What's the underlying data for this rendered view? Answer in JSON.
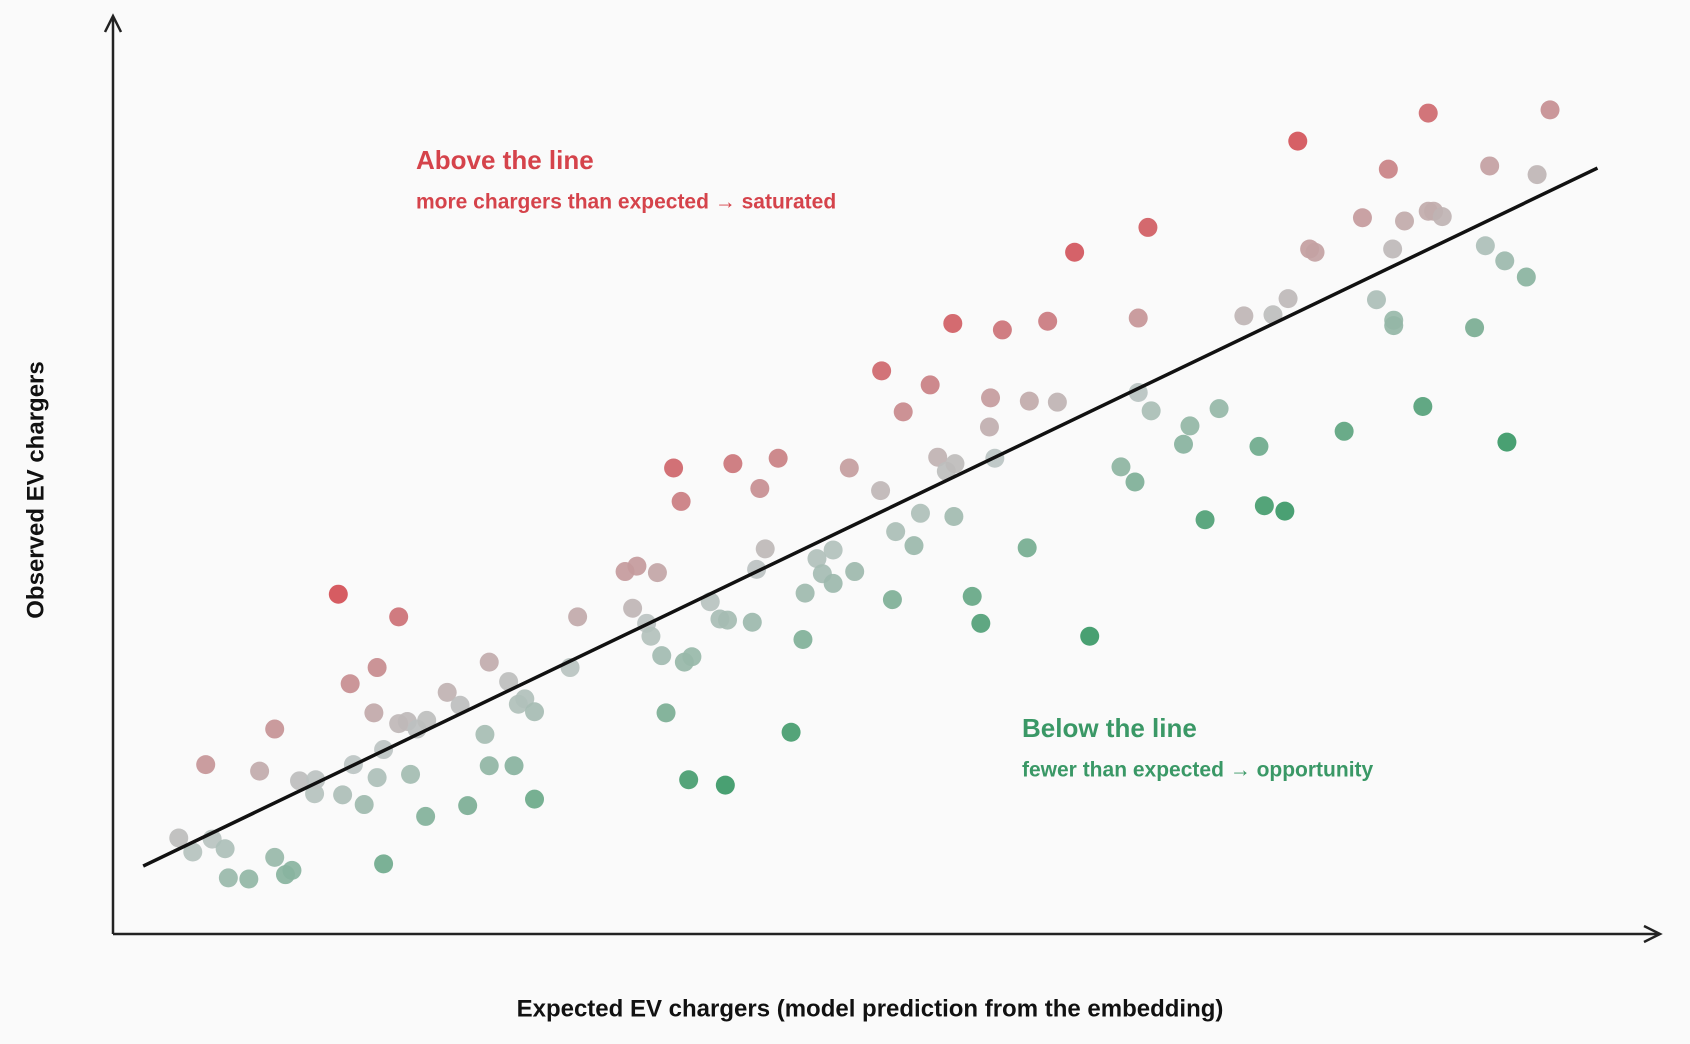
{
  "chart_data": {
    "type": "scatter",
    "x_label": "Expected EV chargers  (model prediction from the embedding)",
    "y_label": "Observed EV chargers",
    "annotations": [
      {
        "title": "Above the line",
        "text": "more chargers than expected → saturated",
        "side": "above"
      },
      {
        "title": "Below the line",
        "text": "fewer than expected → opportunity",
        "side": "below"
      }
    ],
    "colors": {
      "above": "#d5434b",
      "neutral": "#bcc4c3",
      "below": "#3a9866",
      "line": "#111111"
    },
    "xlim": [
      0,
      1435
    ],
    "ylim": [
      0,
      851
    ],
    "x": [
      61,
      74,
      92,
      104,
      107,
      126,
      150,
      160,
      166,
      86,
      136,
      150,
      173,
      187,
      188,
      209,
      213,
      220,
      223,
      233,
      242,
      245,
      245,
      251,
      251,
      265,
      265,
      273,
      276,
      282,
      291,
      290,
      310,
      322,
      329,
      345,
      349,
      349,
      367,
      372,
      376,
      382,
      391,
      391,
      424,
      431,
      475,
      486,
      505,
      482,
      495,
      499,
      509,
      513,
      530,
      537,
      520,
      527,
      534,
      554,
      563,
      570,
      568,
      575,
      593,
      597,
      600,
      605,
      617,
      629,
      640,
      642,
      653,
      658,
      668,
      668,
      683,
      688,
      712,
      713,
      723,
      726,
      733,
      743,
      749,
      758,
      765,
      773,
      779,
      781,
      780,
      797,
      805,
      813,
      814,
      818,
      825,
      848,
      850,
      867,
      876,
      892,
      906,
      935,
      948,
      951,
      951,
      960,
      963,
      993,
      999,
      1013,
      1026,
      1049,
      1063,
      1068,
      1076,
      1087,
      1090,
      1099,
      1110,
      1115,
      1142,
      1159,
      1172,
      1183,
      1187,
      1188,
      1188,
      1198,
      1215,
      1220,
      1220,
      1225,
      1233,
      1263,
      1273,
      1277,
      1291,
      1293,
      1311,
      1321,
      1333
    ],
    "y": [
      89,
      76,
      88,
      79,
      52,
      51,
      71,
      55,
      59,
      157,
      151,
      190,
      142,
      130,
      143,
      315,
      129,
      232,
      157,
      120,
      205,
      247,
      145,
      171,
      65,
      294,
      195,
      197,
      148,
      190,
      198,
      109,
      224,
      212,
      119,
      185,
      252,
      156,
      234,
      156,
      213,
      218,
      206,
      125,
      247,
      294,
      336,
      341,
      335,
      302,
      288,
      276,
      258,
      205,
      252,
      257,
      432,
      401,
      143,
      308,
      292,
      291,
      138,
      436,
      289,
      338,
      413,
      357,
      441,
      187,
      273,
      316,
      348,
      334,
      356,
      325,
      432,
      336,
      411,
      522,
      310,
      373,
      484,
      360,
      390,
      509,
      442,
      429,
      566,
      436,
      387,
      313,
      288,
      470,
      497,
      441,
      560,
      358,
      494,
      568,
      493,
      632,
      276,
      433,
      419,
      571,
      502,
      655,
      485,
      454,
      471,
      384,
      487,
      573,
      452,
      397,
      574,
      392,
      589,
      735,
      635,
      632,
      466,
      664,
      588,
      709,
      635,
      569,
      564,
      661,
      489,
      761,
      670,
      670,
      665,
      562,
      638,
      712,
      624,
      456,
      609,
      704,
      764
    ],
    "fit_line": {
      "x": [
        28,
        1377
      ],
      "y": [
        63,
        710
      ]
    }
  }
}
